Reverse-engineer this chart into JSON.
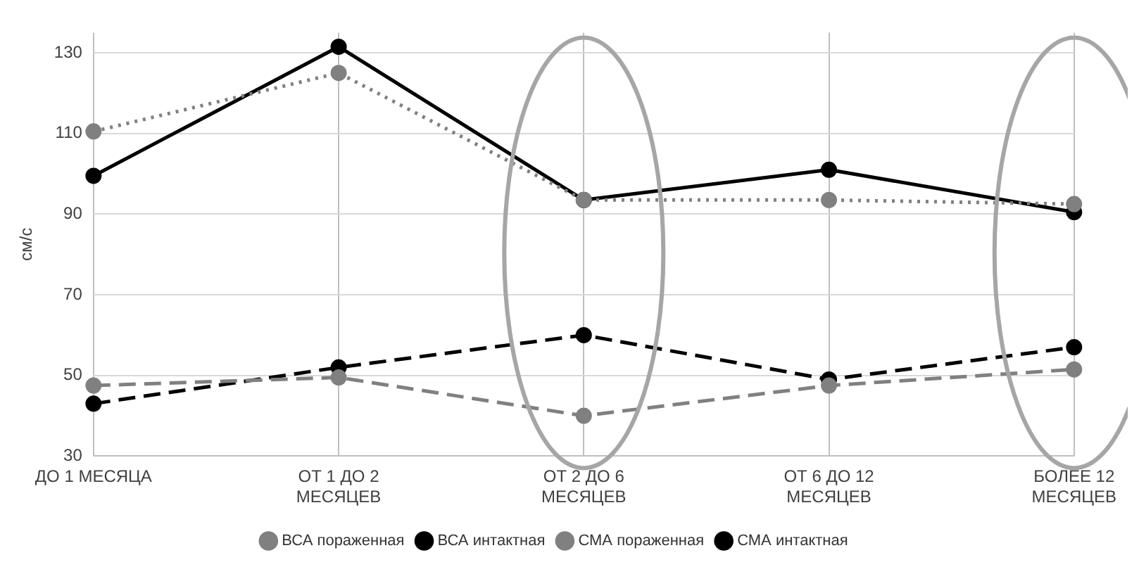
{
  "chart_data": {
    "type": "line",
    "ylabel": "см/с",
    "categories": [
      "ДО 1 МЕСЯЦА",
      "ОТ 1 ДО 2 МЕСЯЦЕВ",
      "ОТ 2 ДО 6 МЕСЯЦЕВ",
      "ОТ 6 ДО 12 МЕСЯЦЕВ",
      "БОЛЕЕ 12 МЕСЯЦЕВ"
    ],
    "series": [
      {
        "name": "ВСА пораженная",
        "color": "#808080",
        "line_style": "dashed",
        "values": [
          47.5,
          49.5,
          40,
          47.5,
          51.5
        ]
      },
      {
        "name": "ВСА интактная",
        "color": "#000000",
        "line_style": "dashed",
        "values": [
          43,
          52,
          60,
          49,
          57
        ]
      },
      {
        "name": "СМА пораженная",
        "color": "#808080",
        "line_style": "dotted",
        "values": [
          110.5,
          125,
          93.5,
          93.5,
          92.5
        ]
      },
      {
        "name": "СМА интактная",
        "color": "#000000",
        "line_style": "solid",
        "values": [
          99.5,
          131.5,
          93.5,
          101,
          90.5
        ]
      }
    ],
    "ylim": [
      30,
      135
    ],
    "yticks": [
      30,
      50,
      70,
      90,
      110,
      130
    ],
    "grid": true,
    "legend": "bottom",
    "marker": "circle"
  }
}
